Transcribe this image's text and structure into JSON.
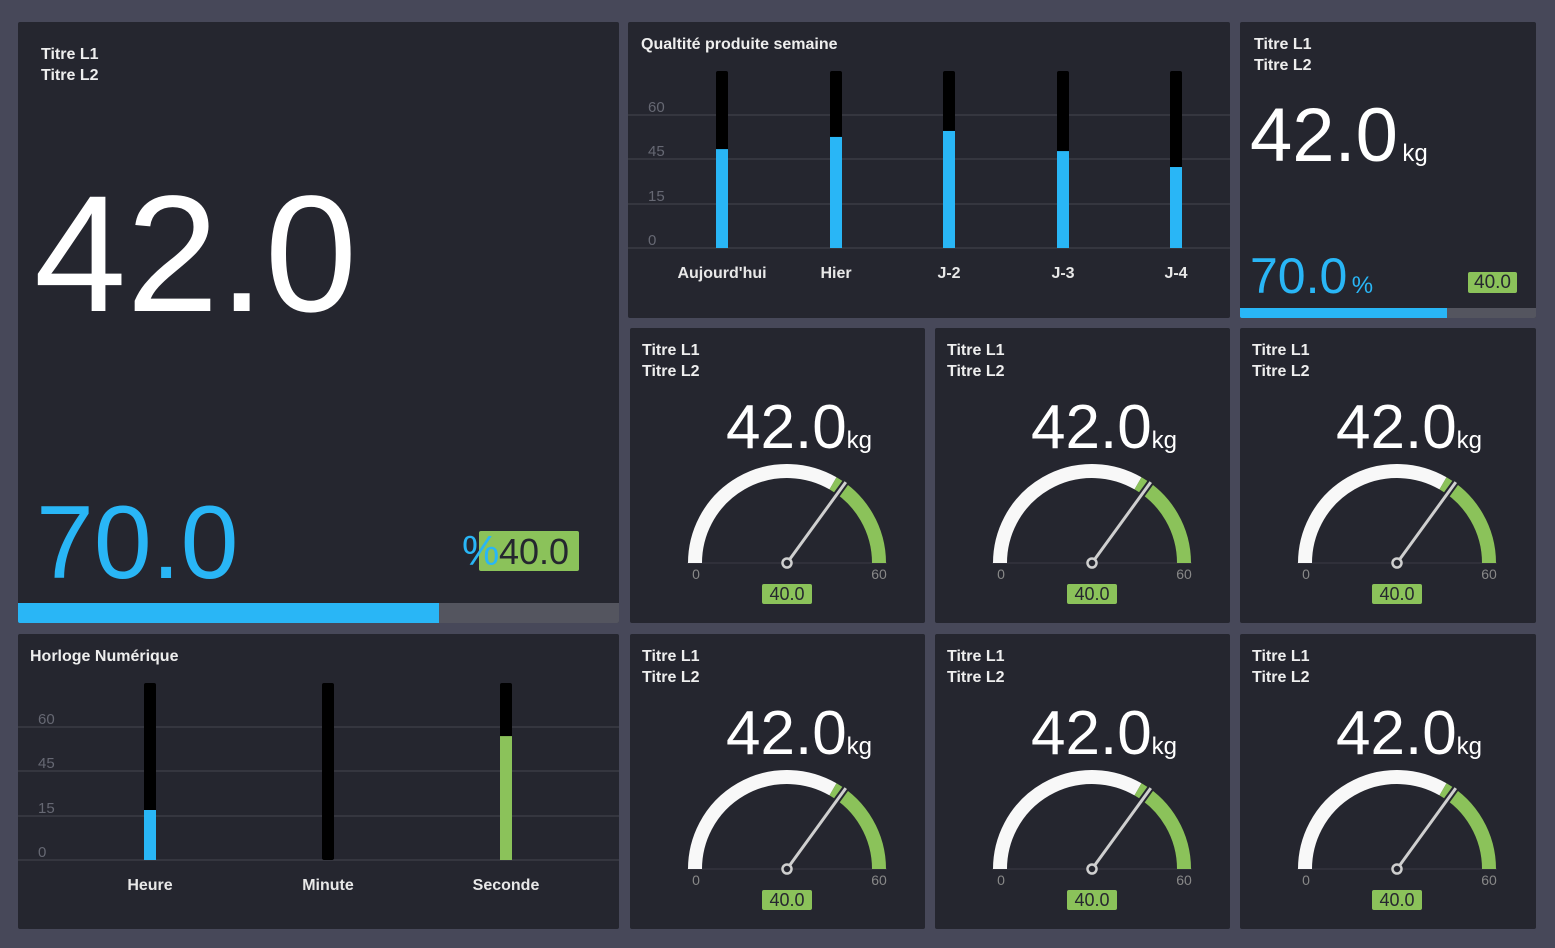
{
  "colors": {
    "blue": "#29b6f6",
    "green": "#8bc25a",
    "panel": "#25262f",
    "track": "#54555f"
  },
  "big_tile": {
    "title_l1": "Titre L1",
    "title_l2": "Titre L2",
    "value": "42.0",
    "secondary": "70.0",
    "secondary_unit": "%",
    "badge": "40.0",
    "progress_percent": 70
  },
  "small_tile": {
    "title_l1": "Titre L1",
    "title_l2": "Titre L2",
    "value": "42.0",
    "unit": "kg",
    "secondary": "70.0",
    "secondary_unit": "%",
    "badge": "40.0",
    "progress_percent": 70
  },
  "gauges": [
    {
      "title_l1": "Titre L1",
      "title_l2": "Titre L2",
      "value": "42.0",
      "unit": "kg",
      "min": "0",
      "max": "60",
      "needle": 42,
      "threshold": 40,
      "badge": "40.0"
    },
    {
      "title_l1": "Titre L1",
      "title_l2": "Titre L2",
      "value": "42.0",
      "unit": "kg",
      "min": "0",
      "max": "60",
      "needle": 42,
      "threshold": 40,
      "badge": "40.0"
    },
    {
      "title_l1": "Titre L1",
      "title_l2": "Titre L2",
      "value": "42.0",
      "unit": "kg",
      "min": "0",
      "max": "60",
      "needle": 42,
      "threshold": 40,
      "badge": "40.0"
    },
    {
      "title_l1": "Titre L1",
      "title_l2": "Titre L2",
      "value": "42.0",
      "unit": "kg",
      "min": "0",
      "max": "60",
      "needle": 42,
      "threshold": 40,
      "badge": "40.0"
    },
    {
      "title_l1": "Titre L1",
      "title_l2": "Titre L2",
      "value": "42.0",
      "unit": "kg",
      "min": "0",
      "max": "60",
      "needle": 42,
      "threshold": 40,
      "badge": "40.0"
    },
    {
      "title_l1": "Titre L1",
      "title_l2": "Titre L2",
      "value": "42.0",
      "unit": "kg",
      "min": "0",
      "max": "60",
      "needle": 42,
      "threshold": 40,
      "badge": "40.0"
    }
  ],
  "chart_data": [
    {
      "type": "bar",
      "title": "Qualtité produite semaine",
      "categories": [
        "Aujourd'hui",
        "Hier",
        "J-2",
        "J-3",
        "J-4"
      ],
      "values": [
        44.7,
        50.2,
        52.9,
        43.8,
        36.6
      ],
      "ylim": [
        0,
        80
      ],
      "yticks": [
        "0",
        "15",
        "45",
        "60"
      ],
      "grid": true,
      "bar_color": "#29b6f6"
    },
    {
      "type": "bar",
      "title": "Horloge Numérique",
      "categories": [
        "Heure",
        "Minute",
        "Seconde"
      ],
      "values": [
        22.6,
        0,
        56
      ],
      "ylim": [
        0,
        80
      ],
      "yticks": [
        "0",
        "15",
        "45",
        "60"
      ],
      "grid": true,
      "bar_colors": [
        "#29b6f6",
        "#29b6f6",
        "#8bc25a"
      ]
    }
  ]
}
